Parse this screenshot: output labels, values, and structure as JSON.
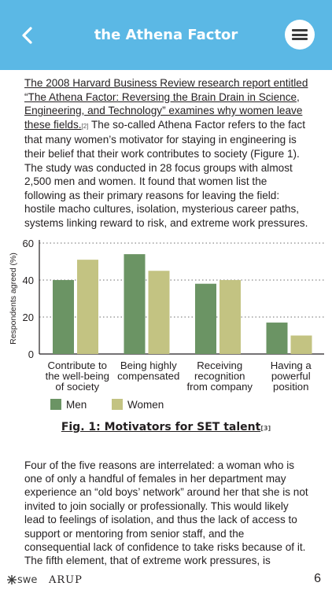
{
  "header": {
    "title": "the Athena Factor",
    "back_icon": "chevron-left-icon",
    "menu_icon": "hamburger-menu-icon",
    "bg_color": "#5bb8e5"
  },
  "article": {
    "link_text": "The 2008 Harvard Business Review research report entitled “The Athena Factor: Reversing the Brain Drain in Science, Engineering, and Technology” examines why women leave these fields.",
    "ref_1": "[2]",
    "body": " The so-called Athena Factor refers to the fact that many women’s motivator for staying in engineering is their belief that their work contributes to society (Figure 1). The study was conducted in 28 focus groups with almost 2,500 men and women. It found that women list the following as their primary reasons for leaving the field: hostile macho cultures, isolation, mysterious career paths, systems linking reward to risk, and extreme work pressures."
  },
  "chart_data": {
    "type": "bar",
    "ylabel": "Respondents agreed (%)",
    "ylim": [
      0,
      60
    ],
    "yticks": [
      "0",
      "20",
      "40",
      "60"
    ],
    "categories": [
      [
        "Contribute to",
        "the well-being",
        "of society"
      ],
      [
        "Being highly",
        "compensated"
      ],
      [
        "Receiving",
        "recognition",
        "from company"
      ],
      [
        "Having a",
        "powerful",
        "position"
      ]
    ],
    "series": [
      {
        "name": "Men",
        "color": "#6b9464",
        "values": [
          40,
          54,
          38,
          17
        ]
      },
      {
        "name": "Women",
        "color": "#c3c382",
        "values": [
          51,
          45,
          40,
          10
        ]
      }
    ],
    "grid": "dotted horizontal",
    "legend": "bottom-left"
  },
  "caption": {
    "text": "Fig. 1: Motivators for SET talent",
    "ref": "[3]"
  },
  "article2": {
    "body": "Four of the five reasons are interrelated: a woman who is one of only a handful of females in her department may experience an “old boys’ network” around her that she is not invited to join socially or professionally. This would likely lead to feelings of isolation, and thus the lack of access to support or mentoring from senior staff, and the consequential lack of confidence to take risks because of it. The fifth element, that of extreme work pressures, is endemic to our industry’s deadline-driven multi-time-zone work patterns and is often the final compounding factor in"
  },
  "footer": {
    "swe_logo": "swe",
    "arup_logo": "ARUP",
    "page_number": "6"
  }
}
